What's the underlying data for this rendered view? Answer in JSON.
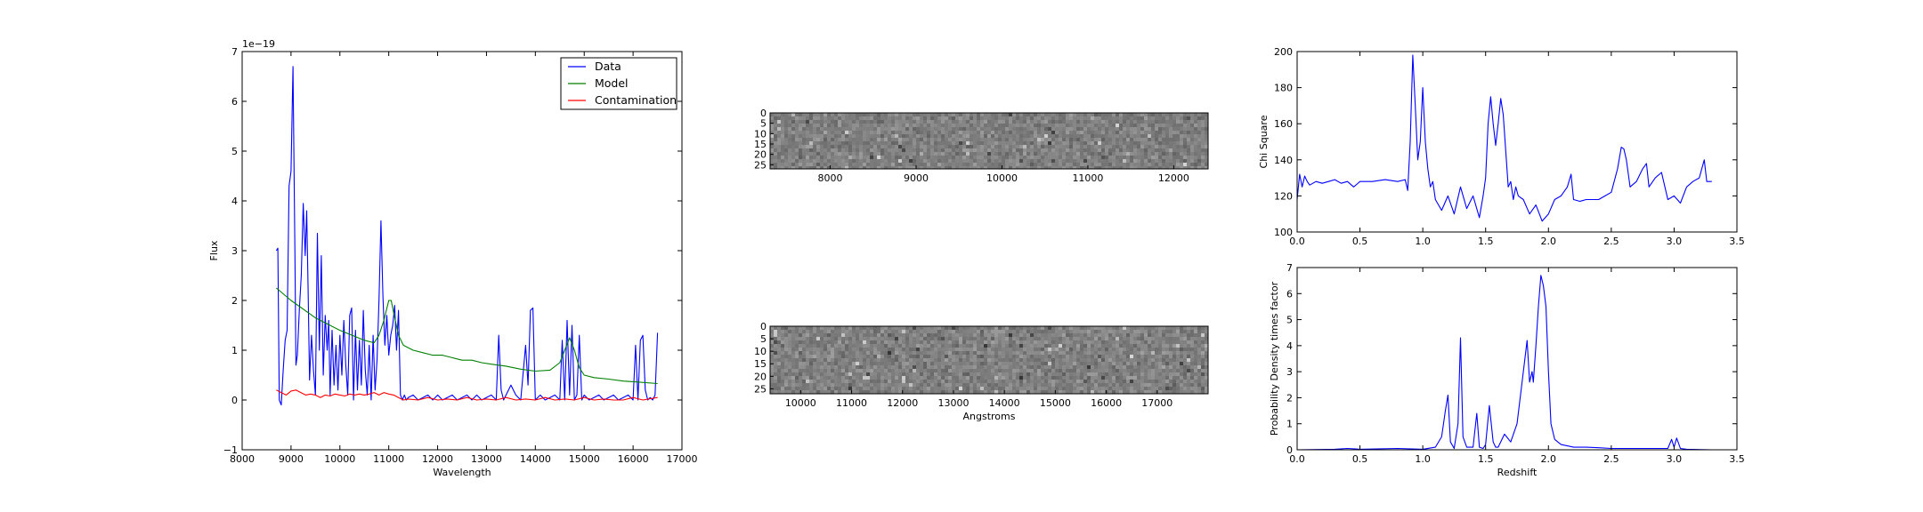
{
  "chart_data": [
    {
      "id": "spectrum",
      "type": "line",
      "xlabel": "Wavelength",
      "ylabel": "Flux",
      "offset_text": "1e−19",
      "xlim": [
        8000,
        17000
      ],
      "ylim": [
        -1,
        7
      ],
      "xticks": [
        "8000",
        "9000",
        "10000",
        "11000",
        "12000",
        "13000",
        "14000",
        "15000",
        "16000",
        "17000"
      ],
      "yticks": [
        "−1",
        "0",
        "1",
        "2",
        "3",
        "4",
        "5",
        "6",
        "7"
      ],
      "legend": {
        "position": "top-right",
        "entries": [
          "Data",
          "Model",
          "Contamination"
        ]
      },
      "series": [
        {
          "name": "Data",
          "color": "#0000ff",
          "x": [
            8700,
            8730,
            8760,
            8800,
            8840,
            8880,
            8920,
            8960,
            9000,
            9040,
            9080,
            9100,
            9130,
            9170,
            9210,
            9250,
            9290,
            9320,
            9350,
            9380,
            9420,
            9460,
            9500,
            9540,
            9580,
            9620,
            9660,
            9700,
            9740,
            9770,
            9800,
            9840,
            9880,
            9920,
            9960,
            10000,
            10040,
            10080,
            10120,
            10160,
            10200,
            10240,
            10280,
            10320,
            10360,
            10400,
            10440,
            10480,
            10520,
            10560,
            10600,
            10640,
            10680,
            10720,
            10760,
            10800,
            10840,
            10880,
            10920,
            10960,
            11000,
            11040,
            11080,
            11120,
            11160,
            11200,
            11240,
            11280,
            11320,
            11360,
            11400,
            11500,
            11600,
            11700,
            11800,
            11900,
            12000,
            12100,
            12200,
            12300,
            12400,
            12500,
            12600,
            12700,
            12800,
            12900,
            13000,
            13100,
            13200,
            13250,
            13300,
            13350,
            13400,
            13500,
            13600,
            13700,
            13800,
            13850,
            13900,
            13950,
            14000,
            14100,
            14200,
            14300,
            14400,
            14500,
            14550,
            14600,
            14650,
            14700,
            14750,
            14800,
            14850,
            14900,
            14950,
            15000,
            15100,
            15200,
            15300,
            15400,
            15500,
            15600,
            15700,
            15800,
            15900,
            16000,
            16050,
            16100,
            16150,
            16200,
            16250,
            16300,
            16350,
            16400,
            16450,
            16500
          ],
          "y": [
            3.0,
            3.05,
            0.0,
            -0.1,
            0.6,
            1.2,
            1.4,
            4.3,
            4.6,
            6.7,
            2.9,
            0.7,
            0.9,
            1.8,
            2.5,
            3.95,
            2.9,
            3.8,
            2.2,
            0.4,
            1.3,
            0.6,
            0.1,
            3.35,
            1.0,
            2.9,
            0.5,
            1.7,
            1.0,
            1.6,
            0.1,
            1.4,
            0.3,
            1.1,
            0.2,
            1.3,
            0.5,
            1.6,
            0.7,
            0.1,
            1.7,
            1.85,
            0.0,
            1.4,
            0.2,
            1.2,
            0.3,
            1.8,
            0.6,
            0.1,
            1.1,
            0.0,
            1.3,
            0.2,
            0.8,
            2.0,
            3.6,
            2.1,
            1.1,
            1.7,
            0.9,
            1.3,
            1.5,
            1.9,
            1.0,
            1.8,
            0.1,
            0.0,
            0.1,
            0.0,
            0.05,
            0.1,
            0.0,
            0.05,
            0.1,
            0.0,
            0.1,
            0.0,
            0.05,
            0.1,
            0.0,
            0.05,
            0.1,
            0.0,
            0.1,
            0.0,
            0.05,
            0.1,
            0.0,
            1.3,
            0.2,
            0.0,
            0.1,
            0.3,
            0.1,
            0.0,
            1.1,
            0.3,
            1.8,
            1.85,
            0.0,
            0.1,
            0.0,
            0.05,
            0.1,
            0.0,
            1.2,
            0.0,
            1.6,
            0.1,
            1.5,
            0.0,
            0.1,
            1.3,
            0.0,
            0.1,
            0.0,
            0.05,
            0.1,
            0.0,
            0.05,
            0.1,
            0.0,
            0.05,
            0.1,
            0.0,
            1.1,
            0.0,
            1.2,
            1.3,
            0.2,
            0.0,
            0.05,
            0.0,
            0.1,
            1.35
          ]
        },
        {
          "name": "Model",
          "color": "#008000",
          "x": [
            8700,
            9000,
            9500,
            10000,
            10500,
            10700,
            10800,
            10900,
            11000,
            11050,
            11100,
            11200,
            11300,
            11400,
            11500,
            11700,
            11900,
            12100,
            12300,
            12500,
            12700,
            12900,
            13100,
            13400,
            13700,
            14000,
            14300,
            14500,
            14600,
            14700,
            14800,
            14900,
            15000,
            15200,
            15500,
            15800,
            16100,
            16500
          ],
          "y": [
            2.25,
            2.0,
            1.65,
            1.4,
            1.2,
            1.15,
            1.3,
            1.6,
            2.0,
            2.0,
            1.75,
            1.3,
            1.1,
            1.05,
            1.0,
            0.95,
            0.9,
            0.9,
            0.85,
            0.8,
            0.8,
            0.75,
            0.72,
            0.68,
            0.62,
            0.58,
            0.6,
            0.75,
            1.0,
            1.25,
            1.0,
            0.65,
            0.5,
            0.45,
            0.42,
            0.38,
            0.36,
            0.33
          ]
        },
        {
          "name": "Contamination",
          "color": "#ff0000",
          "x": [
            8700,
            8800,
            8900,
            9000,
            9100,
            9200,
            9300,
            9400,
            9500,
            9600,
            9700,
            9800,
            9900,
            10000,
            10100,
            10200,
            10300,
            10400,
            10500,
            10600,
            10700,
            10800,
            10900,
            11000,
            11100,
            11200,
            11300,
            11400,
            11600,
            11800,
            12000,
            12200,
            12400,
            12600,
            12800,
            13000,
            13200,
            13400,
            13600,
            13800,
            14000,
            14200,
            14400,
            14600,
            14800,
            15000,
            15200,
            15400,
            15600,
            15800,
            16000,
            16200,
            16500
          ],
          "y": [
            0.2,
            0.15,
            0.1,
            0.18,
            0.2,
            0.15,
            0.1,
            0.12,
            0.1,
            0.05,
            0.1,
            0.08,
            0.12,
            0.1,
            0.08,
            0.12,
            0.1,
            0.12,
            0.1,
            0.12,
            0.15,
            0.1,
            0.15,
            0.12,
            0.1,
            0.05,
            0.0,
            0.02,
            0.0,
            0.05,
            0.0,
            0.02,
            0.0,
            0.05,
            0.0,
            0.02,
            0.0,
            0.05,
            0.0,
            0.02,
            0.0,
            0.05,
            0.0,
            0.02,
            0.0,
            0.05,
            0.0,
            0.02,
            0.0,
            0.0,
            0.05,
            0.0,
            0.05
          ]
        }
      ]
    },
    {
      "id": "image-top",
      "type": "heatmap",
      "xlim": [
        7300,
        12400
      ],
      "ylim": [
        0,
        27
      ],
      "xticks": [
        "8000",
        "9000",
        "10000",
        "11000",
        "12000"
      ],
      "yticks": [
        "0",
        "5",
        "10",
        "15",
        "20",
        "25"
      ],
      "colormap": "gray"
    },
    {
      "id": "image-bottom",
      "type": "heatmap",
      "xlabel": "Angstroms",
      "xlim": [
        9400,
        18000
      ],
      "ylim": [
        0,
        27
      ],
      "xticks": [
        "10000",
        "11000",
        "12000",
        "13000",
        "14000",
        "15000",
        "16000",
        "17000"
      ],
      "yticks": [
        "0",
        "5",
        "10",
        "15",
        "20",
        "25"
      ],
      "colormap": "gray"
    },
    {
      "id": "chisq",
      "type": "line",
      "ylabel": "Chi Square",
      "xlim": [
        0.0,
        3.5
      ],
      "ylim": [
        100,
        200
      ],
      "xticks": [
        "0.0",
        "0.5",
        "1.0",
        "1.5",
        "2.0",
        "2.5",
        "3.0",
        "3.5"
      ],
      "yticks": [
        "100",
        "120",
        "140",
        "160",
        "180",
        "200"
      ],
      "series": [
        {
          "color": "#0000ff",
          "x": [
            0.0,
            0.02,
            0.04,
            0.06,
            0.08,
            0.1,
            0.15,
            0.2,
            0.25,
            0.3,
            0.35,
            0.4,
            0.45,
            0.5,
            0.6,
            0.7,
            0.8,
            0.86,
            0.88,
            0.9,
            0.92,
            0.94,
            0.96,
            0.98,
            1.0,
            1.02,
            1.04,
            1.06,
            1.08,
            1.1,
            1.15,
            1.2,
            1.25,
            1.3,
            1.35,
            1.4,
            1.45,
            1.48,
            1.5,
            1.52,
            1.54,
            1.56,
            1.58,
            1.6,
            1.62,
            1.64,
            1.66,
            1.68,
            1.7,
            1.72,
            1.74,
            1.76,
            1.8,
            1.85,
            1.9,
            1.95,
            2.0,
            2.05,
            2.1,
            2.15,
            2.18,
            2.2,
            2.25,
            2.3,
            2.4,
            2.45,
            2.5,
            2.55,
            2.58,
            2.6,
            2.62,
            2.65,
            2.7,
            2.75,
            2.78,
            2.8,
            2.85,
            2.9,
            2.95,
            3.0,
            3.05,
            3.1,
            3.15,
            3.2,
            3.24,
            3.26,
            3.3
          ],
          "y": [
            118,
            132,
            125,
            131,
            128,
            126,
            128,
            127,
            128,
            129,
            127,
            128,
            125,
            128,
            128,
            129,
            128,
            129,
            123,
            150,
            198,
            170,
            140,
            150,
            180,
            150,
            135,
            125,
            128,
            118,
            112,
            120,
            110,
            125,
            113,
            120,
            108,
            120,
            130,
            160,
            175,
            160,
            148,
            160,
            174,
            165,
            145,
            125,
            128,
            118,
            125,
            120,
            118,
            110,
            115,
            106,
            110,
            118,
            120,
            125,
            132,
            118,
            117,
            118,
            118,
            120,
            122,
            135,
            147,
            146,
            140,
            125,
            128,
            135,
            138,
            125,
            130,
            133,
            118,
            120,
            116,
            125,
            128,
            130,
            140,
            128,
            128
          ]
        }
      ]
    },
    {
      "id": "pdf",
      "type": "line",
      "xlabel": "Redshift",
      "ylabel": "Probability Density times factor",
      "xlim": [
        0.0,
        3.5
      ],
      "ylim": [
        0,
        7
      ],
      "xticks": [
        "0.0",
        "0.5",
        "1.0",
        "1.5",
        "2.0",
        "2.5",
        "3.0",
        "3.5"
      ],
      "yticks": [
        "0",
        "1",
        "2",
        "3",
        "4",
        "5",
        "6",
        "7"
      ],
      "series": [
        {
          "color": "#0000ff",
          "x": [
            0.0,
            0.3,
            0.4,
            0.5,
            0.8,
            1.0,
            1.1,
            1.15,
            1.18,
            1.2,
            1.22,
            1.25,
            1.28,
            1.3,
            1.32,
            1.35,
            1.4,
            1.43,
            1.45,
            1.48,
            1.5,
            1.53,
            1.56,
            1.58,
            1.6,
            1.65,
            1.7,
            1.75,
            1.8,
            1.83,
            1.85,
            1.87,
            1.88,
            1.9,
            1.92,
            1.94,
            1.96,
            1.98,
            2.0,
            2.02,
            2.05,
            2.1,
            2.15,
            2.2,
            2.3,
            2.4,
            2.5,
            2.6,
            2.8,
            2.95,
            2.98,
            3.0,
            3.02,
            3.05,
            3.1,
            3.3
          ],
          "y": [
            0.0,
            0.02,
            0.05,
            0.02,
            0.05,
            0.02,
            0.1,
            0.5,
            1.5,
            2.1,
            0.3,
            0.05,
            1.0,
            4.3,
            0.5,
            0.1,
            0.1,
            1.4,
            0.1,
            0.05,
            0.2,
            1.7,
            0.3,
            0.1,
            0.1,
            0.6,
            0.3,
            1.0,
            3.0,
            4.2,
            2.6,
            3.0,
            2.6,
            4.0,
            5.5,
            6.7,
            6.3,
            5.5,
            3.0,
            1.0,
            0.4,
            0.2,
            0.15,
            0.1,
            0.1,
            0.08,
            0.05,
            0.05,
            0.05,
            0.05,
            0.4,
            0.1,
            0.45,
            0.05,
            0.02,
            0.0
          ]
        }
      ]
    }
  ]
}
